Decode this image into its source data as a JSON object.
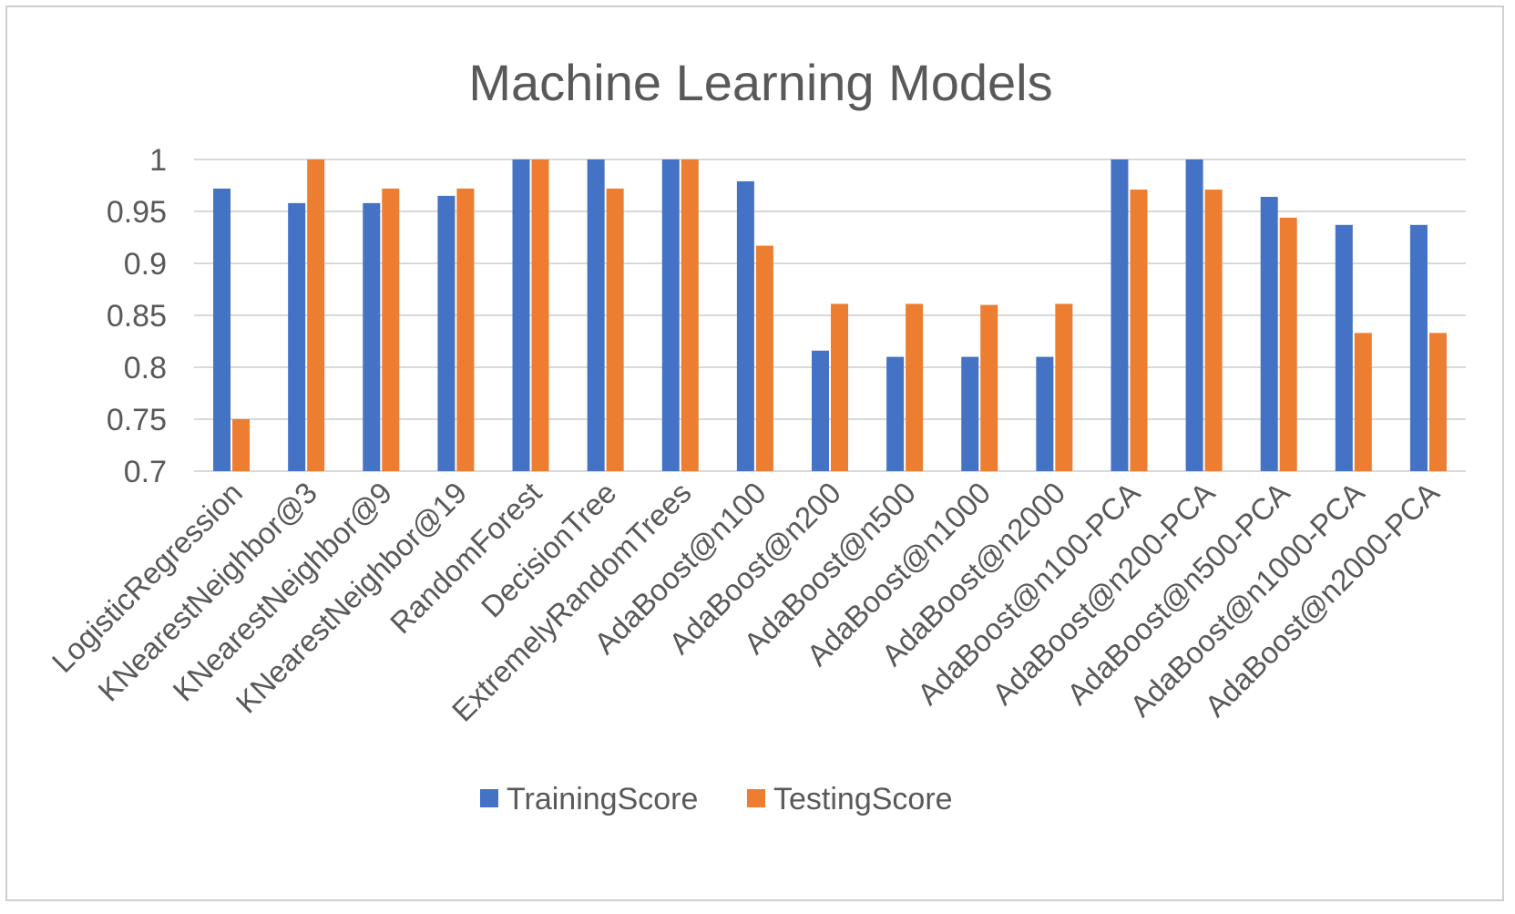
{
  "chart_data": {
    "type": "bar",
    "title": "Machine Learning Models",
    "xlabel": "",
    "ylabel": "",
    "ylim": [
      0.7,
      1
    ],
    "yticks": [
      "0.7",
      "0.75",
      "0.8",
      "0.85",
      "0.9",
      "0.95",
      "1"
    ],
    "grid": true,
    "legend_position": "bottom",
    "categories": [
      "LogisticRegression",
      "KNearestNeighbor@3",
      "KNearestNeighbor@9",
      "KNearestNeighbor@19",
      "RandomForest",
      "DecisionTree",
      "ExtremelyRandomTrees",
      "AdaBoost@n100",
      "AdaBoost@n200",
      "AdaBoost@n500",
      "AdaBoost@n1000",
      "AdaBoost@n2000",
      "AdaBoost@n100-PCA",
      "AdaBoost@n200-PCA",
      "AdaBoost@n500-PCA",
      "AdaBoost@n1000-PCA",
      "AdaBoost@n2000-PCA"
    ],
    "series": [
      {
        "name": "TrainingScore",
        "color": "#4472c4",
        "values": [
          0.972,
          0.958,
          0.958,
          0.965,
          1.0,
          1.0,
          1.0,
          0.979,
          0.816,
          0.81,
          0.81,
          0.81,
          1.0,
          1.0,
          0.964,
          0.937,
          0.937
        ]
      },
      {
        "name": "TestingScore",
        "color": "#ed7d31",
        "values": [
          0.75,
          1.0,
          0.972,
          0.972,
          1.0,
          0.972,
          1.0,
          0.917,
          0.861,
          0.861,
          0.86,
          0.861,
          0.971,
          0.971,
          0.944,
          0.833,
          0.833
        ]
      }
    ]
  }
}
